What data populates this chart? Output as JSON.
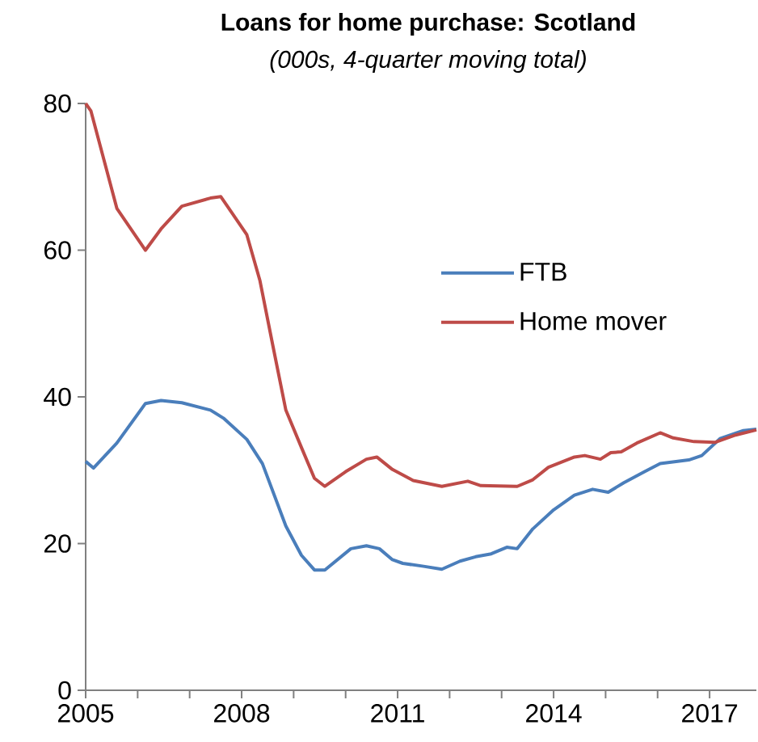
{
  "chart_data": {
    "type": "line",
    "title": "Loans for home purchase: Scotland",
    "subtitle": "(000s, 4-quarter moving total)",
    "xlim": [
      2005,
      2017.9
    ],
    "xticks": [
      2005,
      {
        "value": 2006,
        "label": null
      },
      {
        "value": 2007,
        "label": null
      },
      2008,
      {
        "value": 2009,
        "label": null
      },
      {
        "value": 2010,
        "label": null
      },
      2011,
      {
        "value": 2012,
        "label": null
      },
      {
        "value": 2013,
        "label": null
      },
      2014,
      {
        "value": 2015,
        "label": null
      },
      {
        "value": 2016,
        "label": null
      },
      2017
    ],
    "ylim": [
      0,
      80
    ],
    "yticks": [
      0,
      20,
      40,
      60,
      80
    ],
    "grid": false,
    "legend": "right",
    "marker": "none",
    "line_style": "solid",
    "series": [
      {
        "name": "FTB",
        "color": "#4a7ebb",
        "x": [
          2005.0,
          2005.15,
          2005.6,
          2006.15,
          2006.45,
          2006.85,
          2007.4,
          2007.65,
          2008.1,
          2008.4,
          2008.85,
          2009.15,
          2009.4,
          2009.6,
          2010.1,
          2010.4,
          2010.65,
          2010.9,
          2011.1,
          2011.5,
          2011.85,
          2012.2,
          2012.5,
          2012.8,
          2013.1,
          2013.3,
          2013.6,
          2014.0,
          2014.4,
          2014.75,
          2015.05,
          2015.35,
          2015.75,
          2016.05,
          2016.6,
          2016.85,
          2017.2,
          2017.65,
          2017.9
        ],
        "values": [
          31.2,
          30.3,
          33.7,
          39.1,
          39.5,
          39.2,
          38.2,
          37.1,
          34.2,
          30.9,
          22.4,
          18.4,
          16.4,
          16.4,
          19.3,
          19.7,
          19.3,
          17.8,
          17.3,
          16.9,
          16.5,
          17.6,
          18.2,
          18.6,
          19.5,
          19.3,
          22,
          24.6,
          26.6,
          27.4,
          27,
          28.3,
          29.8,
          30.9,
          31.4,
          32,
          34.3,
          35.4,
          35.6
        ]
      },
      {
        "name": "Home mover",
        "color": "#be4b48",
        "x": [
          2005.0,
          2005.1,
          2005.6,
          2006.15,
          2006.45,
          2006.85,
          2007.4,
          2007.6,
          2008.1,
          2008.35,
          2008.6,
          2008.85,
          2009.15,
          2009.4,
          2009.6,
          2010.0,
          2010.4,
          2010.6,
          2010.9,
          2011.3,
          2011.85,
          2012.35,
          2012.6,
          2013.3,
          2013.6,
          2013.9,
          2014.4,
          2014.6,
          2014.9,
          2015.1,
          2015.3,
          2015.6,
          2016.05,
          2016.3,
          2016.7,
          2017.1,
          2017.5,
          2017.9
        ],
        "values": [
          80,
          79,
          65.7,
          60,
          62.9,
          66,
          67.1,
          67.3,
          62.1,
          55.9,
          47,
          38.2,
          33.1,
          28.9,
          27.8,
          29.8,
          31.5,
          31.8,
          30.1,
          28.6,
          27.8,
          28.5,
          27.9,
          27.8,
          28.7,
          30.4,
          31.8,
          32,
          31.5,
          32.4,
          32.5,
          33.7,
          35.1,
          34.4,
          33.9,
          33.8,
          34.8,
          35.5
        ]
      }
    ]
  }
}
